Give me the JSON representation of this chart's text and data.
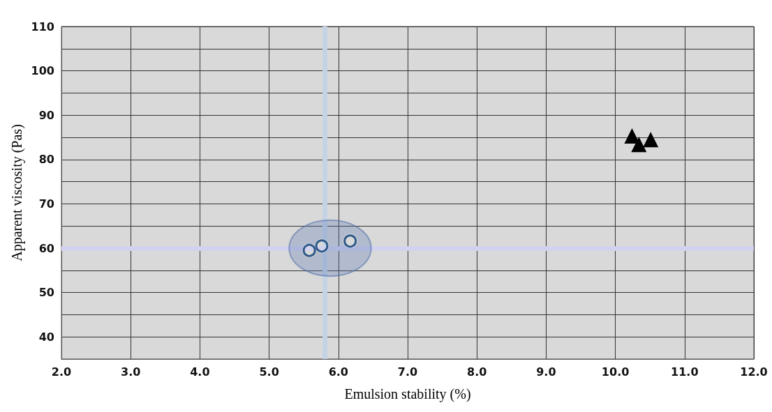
{
  "chart_data": {
    "type": "scatter",
    "xlabel": "Emulsion stability (%)",
    "ylabel": "Apparent viscosity (Pas)",
    "series": [
      {
        "color": "#2f5a8a",
        "marker": "circle",
        "x": [
          5.58,
          5.76,
          6.17
        ],
        "values": [
          59.5,
          60.5,
          61.6
        ]
      },
      {
        "color": "#000000",
        "marker": "triangle",
        "x": [
          10.24,
          10.34,
          10.51
        ],
        "values": [
          85.3,
          83.4,
          84.5
        ]
      }
    ],
    "xlim": [
      2,
      12
    ],
    "xticks": [
      {
        "value": 2,
        "label": "2.0"
      },
      {
        "value": 3,
        "label": "3.0"
      },
      {
        "value": 4,
        "label": "4.0"
      },
      {
        "value": 5,
        "label": "5.0"
      },
      {
        "value": 6,
        "label": "6.0"
      },
      {
        "value": 7,
        "label": "7.0"
      },
      {
        "value": 8,
        "label": "8.0"
      },
      {
        "value": 9,
        "label": "9.0"
      },
      {
        "value": 10,
        "label": "10.0"
      },
      {
        "value": 11,
        "label": "11.0"
      },
      {
        "value": 12,
        "label": "12.0"
      }
    ],
    "ylim": [
      35,
      110
    ],
    "yticks": [
      40,
      {
        "value": 45,
        "label": null
      },
      50,
      {
        "value": 55,
        "label": null
      },
      60,
      {
        "value": 65,
        "label": null
      },
      70,
      {
        "value": 75,
        "label": null
      },
      80,
      {
        "value": 85,
        "label": null
      },
      90,
      {
        "value": 95,
        "label": null
      },
      100,
      {
        "value": 105,
        "label": null
      },
      110
    ],
    "ref_lines": [
      {
        "axis": "x",
        "value": 5.8,
        "color": "#c5d3e6"
      },
      {
        "axis": "y",
        "value": 60,
        "color": "#d2d2ee"
      }
    ],
    "grid": true
  }
}
